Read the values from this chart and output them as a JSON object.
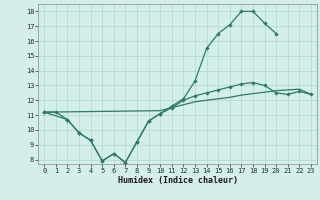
{
  "xlabel": "Humidex (Indice chaleur)",
  "x": [
    0,
    1,
    2,
    3,
    4,
    5,
    6,
    7,
    8,
    9,
    10,
    11,
    12,
    13,
    14,
    15,
    16,
    17,
    18,
    19,
    20,
    21,
    22,
    23
  ],
  "line1_x": [
    0,
    1,
    2,
    3,
    4,
    5,
    6,
    7,
    8,
    9,
    10,
    11,
    12,
    13,
    14,
    15,
    16,
    17,
    18,
    19,
    20
  ],
  "line1_y": [
    11.2,
    11.2,
    10.7,
    9.8,
    9.3,
    7.9,
    8.4,
    7.8,
    9.2,
    10.6,
    11.1,
    11.6,
    12.1,
    13.3,
    15.5,
    16.5,
    17.1,
    18.0,
    18.0,
    17.2,
    16.5
  ],
  "line2_x": [
    0,
    2,
    3,
    4,
    5,
    6,
    7,
    8,
    9,
    10,
    11,
    12,
    13,
    14,
    15,
    16,
    17,
    18,
    19,
    20,
    21,
    22,
    23
  ],
  "line2_y": [
    11.2,
    10.7,
    9.8,
    9.3,
    7.9,
    8.4,
    7.8,
    9.2,
    10.6,
    11.1,
    11.5,
    12.0,
    12.3,
    12.5,
    12.7,
    12.9,
    13.1,
    13.2,
    13.0,
    12.5,
    12.4,
    12.6,
    12.4
  ],
  "line3_x": [
    0,
    10,
    11,
    12,
    13,
    14,
    15,
    16,
    17,
    18,
    19,
    20,
    21,
    22,
    23
  ],
  "line3_y": [
    11.2,
    11.3,
    11.5,
    11.7,
    11.9,
    12.0,
    12.1,
    12.2,
    12.35,
    12.45,
    12.55,
    12.65,
    12.7,
    12.75,
    12.4
  ],
  "line_color": "#2d7a68",
  "bg_color": "#d4eeea",
  "grid_color": "#aed8d0",
  "ylim": [
    7.7,
    18.5
  ],
  "xlim": [
    -0.5,
    23.5
  ],
  "yticks": [
    8,
    9,
    10,
    11,
    12,
    13,
    14,
    15,
    16,
    17,
    18
  ],
  "xticks": [
    0,
    1,
    2,
    3,
    4,
    5,
    6,
    7,
    8,
    9,
    10,
    11,
    12,
    13,
    14,
    15,
    16,
    17,
    18,
    19,
    20,
    21,
    22,
    23
  ]
}
